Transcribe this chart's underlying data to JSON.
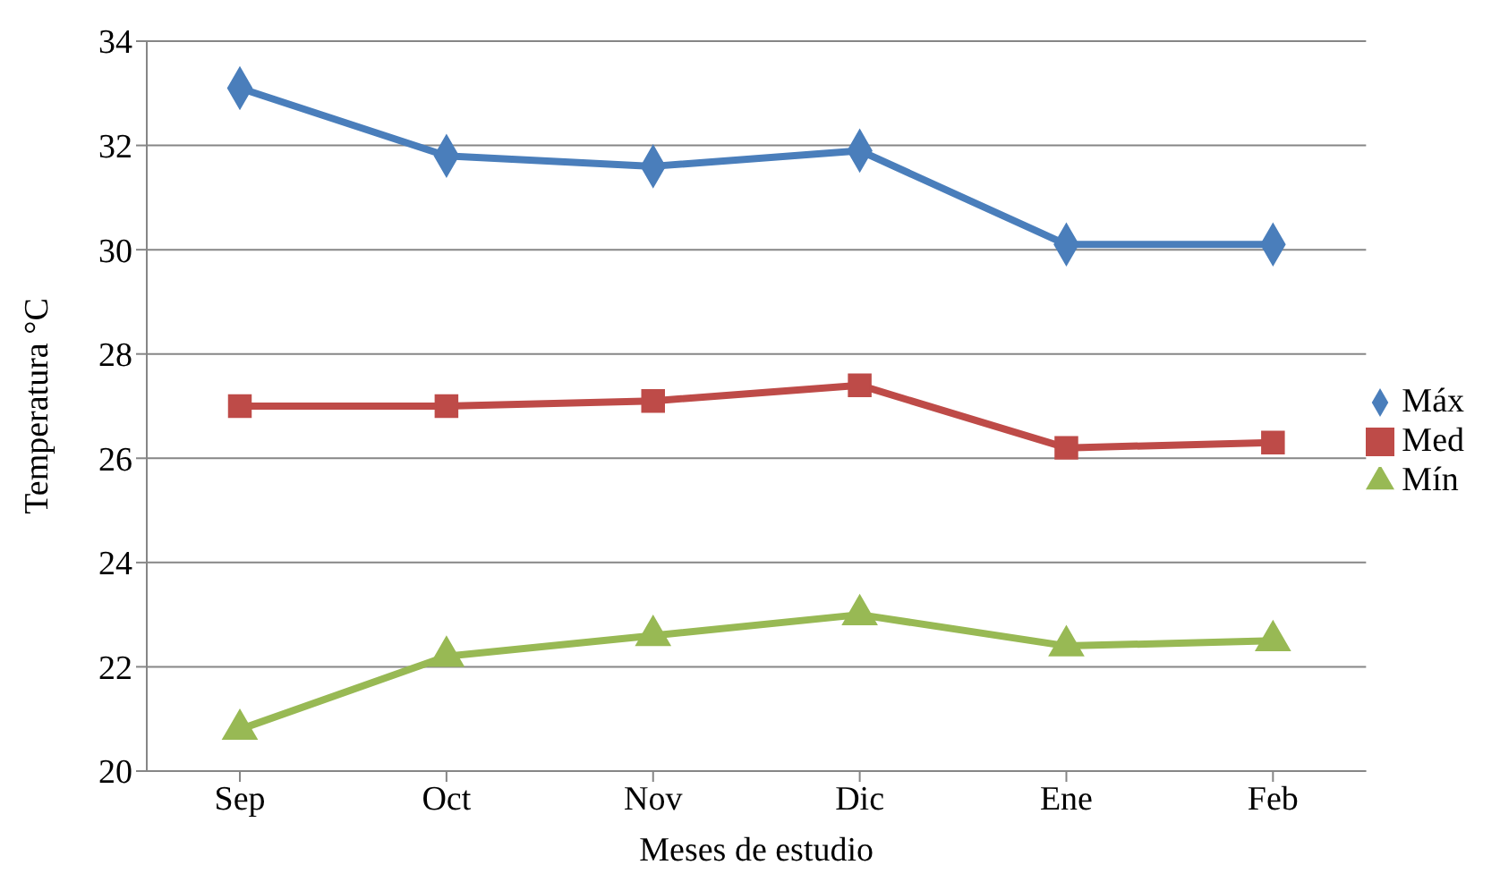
{
  "chart_data": {
    "type": "line",
    "xlabel": "Meses de estudio",
    "ylabel": "Temperatura °C",
    "categories": [
      "Sep",
      "Oct",
      "Nov",
      "Dic",
      "Ene",
      "Feb"
    ],
    "series": [
      {
        "name": "Máx",
        "color": "#4a7ebb",
        "marker": "diamond",
        "values": [
          33.1,
          31.8,
          31.6,
          31.9,
          30.1,
          30.1
        ]
      },
      {
        "name": "Med",
        "color": "#be4b48",
        "marker": "square",
        "values": [
          27.0,
          27.0,
          27.1,
          27.4,
          26.2,
          26.3
        ]
      },
      {
        "name": "Mín",
        "color": "#98b954",
        "marker": "triangle",
        "values": [
          20.8,
          22.2,
          22.6,
          23.0,
          22.4,
          22.5
        ]
      }
    ],
    "ylim": [
      20,
      34
    ],
    "yticks": [
      20,
      22,
      24,
      26,
      28,
      30,
      32,
      34
    ],
    "grid": "y",
    "legend": "right"
  }
}
